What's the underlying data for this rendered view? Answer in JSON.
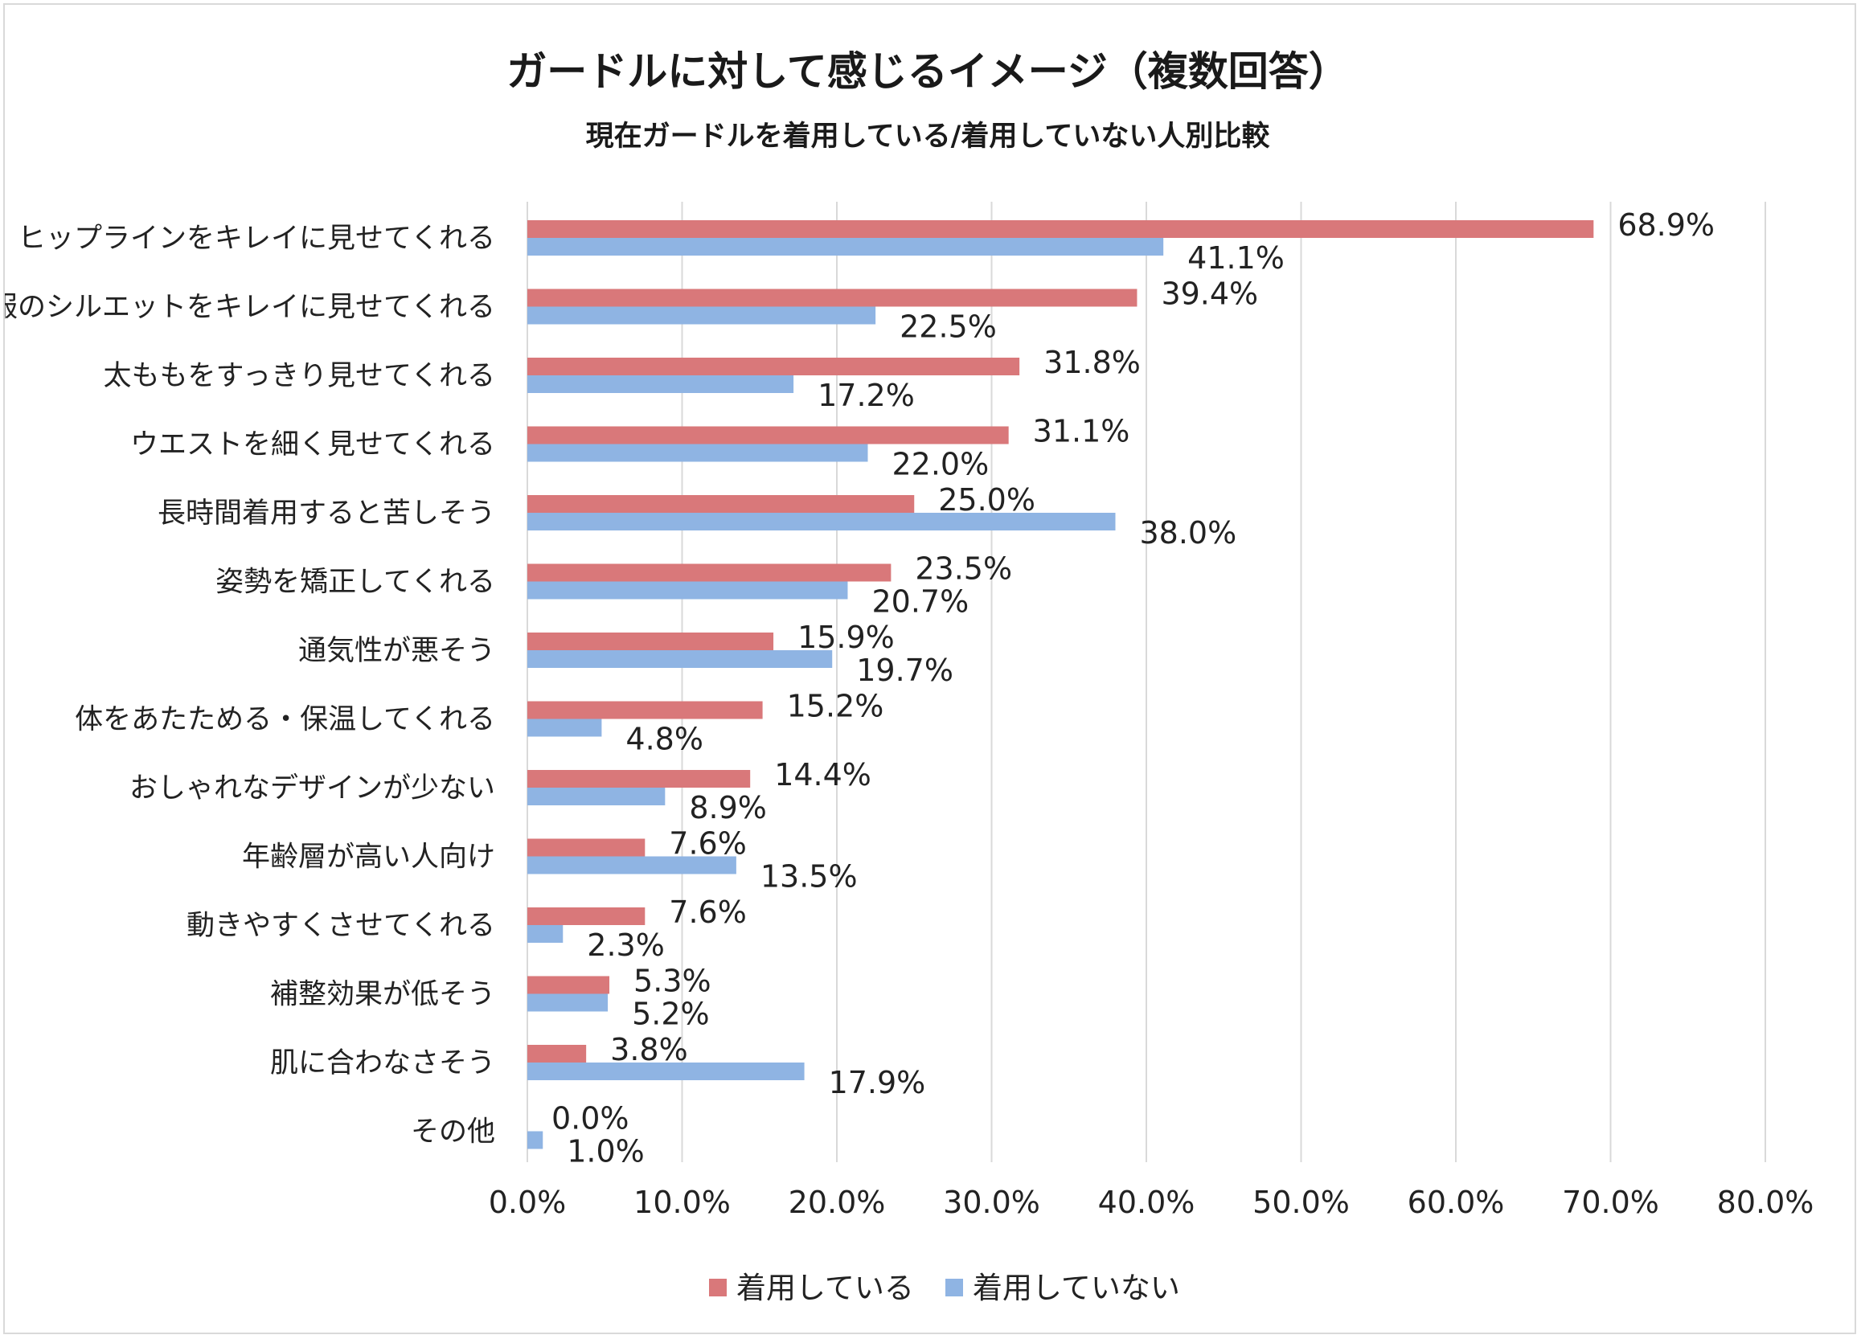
{
  "chart_data": {
    "type": "bar",
    "orientation": "horizontal",
    "title": "ガードルに対して感じるイメージ（複数回答）",
    "subtitle": "現在ガードルを着用している/着用していない人別比較",
    "categories": [
      "ヒップラインをキレイに見せてくれる",
      "服のシルエットをキレイに見せてくれる",
      "太ももをすっきり見せてくれる",
      "ウエストを細く見せてくれる",
      "長時間着用すると苦しそう",
      "姿勢を矯正してくれる",
      "通気性が悪そう",
      "体をあたためる・保温してくれる",
      "おしゃれなデザインが少ない",
      "年齢層が高い人向け",
      "動きやすくさせてくれる",
      "補整効果が低そう",
      "肌に合わなさそう",
      "その他"
    ],
    "series": [
      {
        "name": "着用している",
        "color": "#d9787a",
        "values": [
          68.9,
          39.4,
          31.8,
          31.1,
          25.0,
          23.5,
          15.9,
          15.2,
          14.4,
          7.6,
          7.6,
          5.3,
          3.8,
          0.0
        ],
        "labels": [
          "68.9%",
          "39.4%",
          "31.8%",
          "31.1%",
          "25.0%",
          "23.5%",
          "15.9%",
          "15.2%",
          "14.4%",
          "7.6%",
          "7.6%",
          "5.3%",
          "3.8%",
          "0.0%"
        ]
      },
      {
        "name": "着用していない",
        "color": "#8fb4e3",
        "values": [
          41.1,
          22.5,
          17.2,
          22.0,
          38.0,
          20.7,
          19.7,
          4.8,
          8.9,
          13.5,
          2.3,
          5.2,
          17.9,
          1.0
        ],
        "labels": [
          "41.1%",
          "22.5%",
          "17.2%",
          "22.0%",
          "38.0%",
          "20.7%",
          "19.7%",
          "4.8%",
          "8.9%",
          "13.5%",
          "2.3%",
          "5.2%",
          "17.9%",
          "1.0%"
        ]
      }
    ],
    "xlim": [
      0,
      80
    ],
    "x_ticks": [
      0,
      10,
      20,
      30,
      40,
      50,
      60,
      70,
      80
    ],
    "x_tick_labels": [
      "0.0%",
      "10.0%",
      "20.0%",
      "30.0%",
      "40.0%",
      "50.0%",
      "60.0%",
      "70.0%",
      "80.0%"
    ],
    "grid": "vertical",
    "legend_position": "bottom-center"
  }
}
